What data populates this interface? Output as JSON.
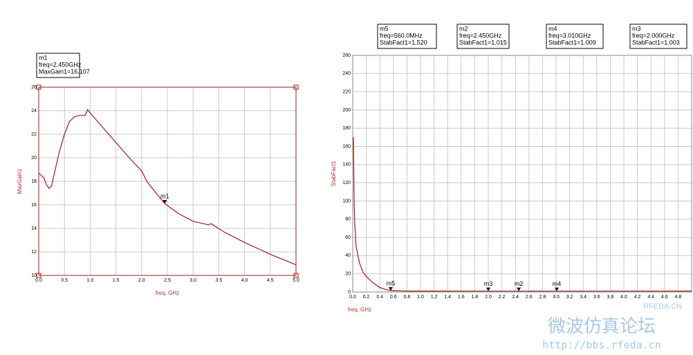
{
  "chart_data": [
    {
      "type": "line",
      "xlabel": "freq, GHz",
      "ylabel": "MaxGain1",
      "color": "#a01818",
      "grid": true,
      "xlim": [
        0,
        5
      ],
      "ylim": [
        10,
        26
      ],
      "xticks": [
        {
          "value": 0,
          "label": "0.0"
        },
        0.5,
        {
          "value": 1,
          "label": "1.0"
        },
        1.5,
        {
          "value": 2,
          "label": "2.0"
        },
        2.5,
        {
          "value": 3,
          "label": "3.0"
        },
        3.5,
        {
          "value": 4,
          "label": "4.0"
        },
        4.5,
        {
          "value": 5,
          "label": "5.0"
        }
      ],
      "yticks": [
        10,
        12,
        14,
        16,
        18,
        20,
        22,
        24,
        26
      ],
      "x": [
        0,
        0.1,
        0.15,
        0.2,
        0.25,
        0.3,
        0.4,
        0.5,
        0.6,
        0.7,
        0.8,
        0.9,
        0.95,
        1.0,
        1.2,
        1.5,
        1.8,
        2.0,
        2.1,
        2.3,
        2.45,
        2.7,
        3.0,
        3.3,
        3.35,
        3.6,
        4.0,
        4.5,
        5.0
      ],
      "values": [
        18.7,
        18.3,
        17.7,
        17.4,
        17.6,
        18.6,
        20.5,
        22.0,
        23.1,
        23.5,
        23.6,
        23.6,
        24.1,
        23.8,
        22.8,
        21.3,
        19.8,
        18.9,
        18.0,
        16.9,
        16.107,
        15.3,
        14.6,
        14.3,
        14.4,
        13.7,
        12.8,
        11.8,
        10.9
      ],
      "markers": [
        {
          "name": "m1",
          "x": 2.45,
          "y": 16.107,
          "text": [
            "freq=2.450GHz",
            "MaxGain1=16.107"
          ]
        }
      ]
    },
    {
      "type": "line",
      "xlabel": "freq, GHz",
      "ylabel": "StabFact1",
      "color": "#a01818",
      "grid": true,
      "xlim": [
        0,
        5
      ],
      "ylim": [
        0,
        260
      ],
      "xticks": [
        {
          "value": 0,
          "label": "0.0"
        },
        0.2,
        0.4,
        0.6,
        0.8,
        {
          "value": 1,
          "label": "1.0"
        },
        1.2,
        1.4,
        1.6,
        1.8,
        {
          "value": 2,
          "label": "2.0"
        },
        2.2,
        2.4,
        2.6,
        2.8,
        {
          "value": 3,
          "label": "3.0"
        },
        3.2,
        3.4,
        3.6,
        3.8,
        {
          "value": 4,
          "label": "4.0"
        },
        4.2,
        4.4,
        4.6,
        4.8
      ],
      "yticks": [
        0,
        20,
        40,
        60,
        80,
        100,
        120,
        140,
        160,
        180,
        200,
        220,
        240,
        260
      ],
      "x": [
        0.01,
        0.02,
        0.03,
        0.05,
        0.1,
        0.15,
        0.2,
        0.3,
        0.4,
        0.5,
        0.56,
        0.8,
        1.0,
        2.0,
        2.45,
        3.01,
        4.0,
        5.0
      ],
      "values": [
        170,
        100,
        75,
        50,
        32,
        22,
        17,
        10,
        5,
        2.5,
        1.52,
        1.1,
        1.05,
        1.003,
        1.015,
        1.009,
        1.02,
        1.03
      ],
      "markers": [
        {
          "name": "m5",
          "x": 0.56,
          "y": 1.52,
          "text": [
            "freq=560.0MHz",
            "StabFact1=1.520"
          ]
        },
        {
          "name": "m2",
          "x": 2.45,
          "y": 1.015,
          "text": [
            "freq=2.450GHz",
            "StabFact1=1.015"
          ]
        },
        {
          "name": "m4",
          "x": 3.01,
          "y": 1.009,
          "text": [
            "freq=3.010GHz",
            "StabFact1=1.009"
          ]
        },
        {
          "name": "m3",
          "x": 2.0,
          "y": 1.003,
          "text": [
            "freq=2.000GHz",
            "StabFact1=1.003"
          ]
        }
      ]
    }
  ],
  "watermark": {
    "site": "RFEDA.CN",
    "title": "微波仿真论坛",
    "url": "http://bbs.rfeda.cn"
  }
}
